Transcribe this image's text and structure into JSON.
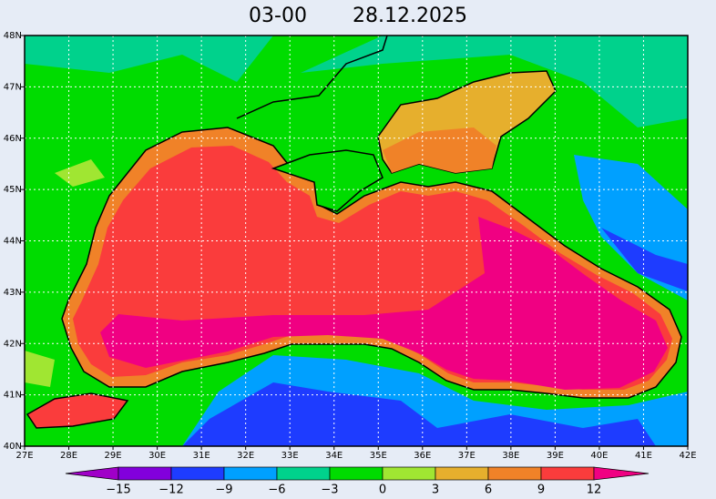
{
  "header": {
    "time": "03-00",
    "date": "28.12.2025"
  },
  "map": {
    "lat_labels": [
      "48N",
      "47N",
      "46N",
      "45N",
      "44N",
      "43N",
      "42N",
      "41N",
      "40N"
    ],
    "lon_labels": [
      "27E",
      "28E",
      "29E",
      "30E",
      "31E",
      "32E",
      "33E",
      "34E",
      "35E",
      "36E",
      "37E",
      "38E",
      "39E",
      "40E",
      "41E",
      "42E"
    ]
  },
  "colorbar": {
    "labels": [
      "−15",
      "−12",
      "−9",
      "−6",
      "−3",
      "0",
      "3",
      "6",
      "9",
      "12"
    ],
    "colors": [
      "#a000c8",
      "#8200dc",
      "#1e3cff",
      "#00a0ff",
      "#00d28c",
      "#00dc00",
      "#a0e632",
      "#e6af2d",
      "#f08228",
      "#fa3c3c",
      "#f00082"
    ]
  }
}
